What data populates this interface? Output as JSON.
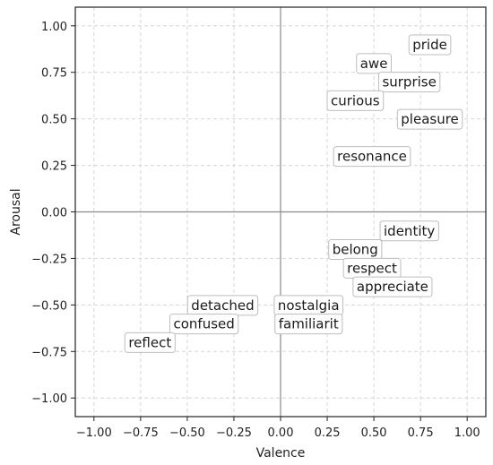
{
  "chart_data": {
    "type": "scatter",
    "title": "",
    "xlabel": "Valence",
    "ylabel": "Arousal",
    "xlim": [
      -1.1,
      1.1
    ],
    "ylim": [
      -1.1,
      1.1
    ],
    "x_ticks": [
      -1.0,
      -0.75,
      -0.5,
      -0.25,
      0.0,
      0.25,
      0.5,
      0.75,
      1.0
    ],
    "y_ticks": [
      -1.0,
      -0.75,
      -0.5,
      -0.25,
      0.0,
      0.25,
      0.5,
      0.75,
      1.0
    ],
    "x_tick_labels": [
      "−1.00",
      "−0.75",
      "−0.50",
      "−0.25",
      "0.00",
      "0.25",
      "0.50",
      "0.75",
      "1.00"
    ],
    "y_tick_labels": [
      "−1.00",
      "−0.75",
      "−0.50",
      "−0.25",
      "0.00",
      "0.25",
      "0.50",
      "0.75",
      "1.00"
    ],
    "grid": true,
    "zero_lines": true,
    "points": [
      {
        "label": "pride",
        "x": 0.8,
        "y": 0.9
      },
      {
        "label": "awe",
        "x": 0.5,
        "y": 0.8
      },
      {
        "label": "surprise",
        "x": 0.69,
        "y": 0.7
      },
      {
        "label": "curious",
        "x": 0.4,
        "y": 0.6
      },
      {
        "label": "pleasure",
        "x": 0.8,
        "y": 0.5
      },
      {
        "label": "resonance",
        "x": 0.49,
        "y": 0.3
      },
      {
        "label": "identity",
        "x": 0.69,
        "y": -0.1
      },
      {
        "label": "belong",
        "x": 0.4,
        "y": -0.2
      },
      {
        "label": "respect",
        "x": 0.49,
        "y": -0.3
      },
      {
        "label": "appreciate",
        "x": 0.6,
        "y": -0.4
      },
      {
        "label": "nostalgia",
        "x": 0.15,
        "y": -0.5
      },
      {
        "label": "familiarit",
        "x": 0.15,
        "y": -0.6
      },
      {
        "label": "detached",
        "x": -0.31,
        "y": -0.5
      },
      {
        "label": "confused",
        "x": -0.41,
        "y": -0.6
      },
      {
        "label": "reflect",
        "x": -0.7,
        "y": -0.7
      }
    ]
  }
}
